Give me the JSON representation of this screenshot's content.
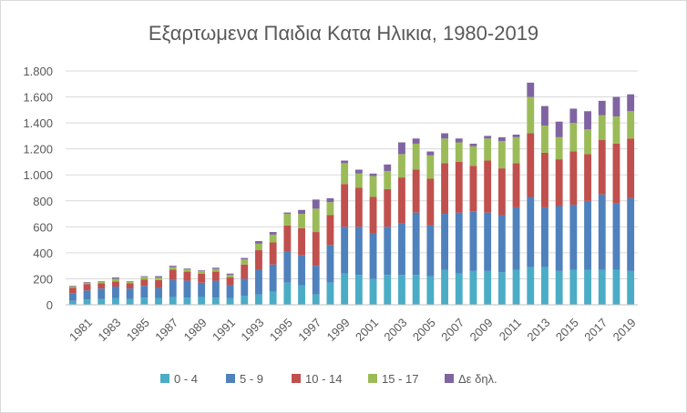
{
  "chart_data": {
    "type": "bar",
    "stacked": true,
    "title": "Εξαρτωμενα Παιδια Κατα Ηλικια, 1980-2019",
    "xlabel": "",
    "ylabel": "",
    "ylim": [
      0,
      1800
    ],
    "yticks": [
      0,
      200,
      400,
      600,
      800,
      1000,
      1200,
      1400,
      1600,
      1800
    ],
    "ytick_labels": [
      "0",
      "200",
      "400",
      "600",
      "800",
      "1.000",
      "1.200",
      "1.400",
      "1.600",
      "1.800"
    ],
    "grid": true,
    "legend_position": "bottom",
    "categories": [
      "1980",
      "1981",
      "1982",
      "1983",
      "1984",
      "1985",
      "1986",
      "1987",
      "1988",
      "1989",
      "1990",
      "1991",
      "1992",
      "1993",
      "1994",
      "1995",
      "1996",
      "1997",
      "1998",
      "1999",
      "2000",
      "2001",
      "2002",
      "2003",
      "2004",
      "2005",
      "2006",
      "2007",
      "2008",
      "2009",
      "2010",
      "2011",
      "2012",
      "2013",
      "2014",
      "2015",
      "2016",
      "2017",
      "2018",
      "2019"
    ],
    "xtick_labels": [
      "1981",
      "1983",
      "1985",
      "1987",
      "1989",
      "1991",
      "1993",
      "1995",
      "1997",
      "1999",
      "2001",
      "2003",
      "2005",
      "2007",
      "2009",
      "2011",
      "2013",
      "2015",
      "2017",
      "2019"
    ],
    "series": [
      {
        "name": "0 - 4",
        "color": "#4bacc6",
        "values": [
          30,
          40,
          45,
          50,
          45,
          55,
          50,
          60,
          55,
          60,
          55,
          50,
          70,
          80,
          100,
          170,
          150,
          80,
          170,
          240,
          230,
          200,
          230,
          230,
          230,
          220,
          270,
          240,
          260,
          260,
          250,
          270,
          290,
          290,
          260,
          270,
          270,
          270,
          270,
          260
        ]
      },
      {
        "name": "5 - 9",
        "color": "#4f81bd",
        "values": [
          60,
          70,
          80,
          90,
          80,
          90,
          80,
          130,
          130,
          110,
          130,
          100,
          130,
          190,
          210,
          240,
          230,
          220,
          290,
          360,
          370,
          350,
          370,
          400,
          480,
          390,
          430,
          470,
          460,
          450,
          440,
          480,
          540,
          460,
          500,
          500,
          530,
          580,
          510,
          560
        ]
      },
      {
        "name": "10 - 14",
        "color": "#c0504d",
        "values": [
          40,
          50,
          40,
          40,
          40,
          50,
          60,
          80,
          70,
          70,
          70,
          60,
          110,
          150,
          170,
          200,
          210,
          260,
          230,
          330,
          300,
          280,
          290,
          350,
          330,
          360,
          390,
          390,
          350,
          400,
          360,
          340,
          490,
          420,
          360,
          410,
          360,
          420,
          460,
          460
        ]
      },
      {
        "name": "15 - 17",
        "color": "#9bbb59",
        "values": [
          10,
          10,
          10,
          20,
          10,
          20,
          20,
          20,
          20,
          20,
          20,
          20,
          40,
          50,
          60,
          90,
          110,
          180,
          100,
          160,
          110,
          160,
          140,
          180,
          200,
          180,
          190,
          150,
          150,
          170,
          210,
          200,
          280,
          210,
          170,
          220,
          190,
          190,
          210,
          210
        ]
      },
      {
        "name": "Δε δηλ.",
        "color": "#8064a2",
        "values": [
          5,
          5,
          5,
          10,
          5,
          5,
          10,
          10,
          5,
          5,
          10,
          10,
          10,
          20,
          20,
          10,
          30,
          70,
          30,
          20,
          30,
          20,
          50,
          90,
          40,
          30,
          40,
          30,
          20,
          20,
          30,
          20,
          110,
          150,
          120,
          110,
          140,
          110,
          150,
          130
        ]
      }
    ]
  }
}
